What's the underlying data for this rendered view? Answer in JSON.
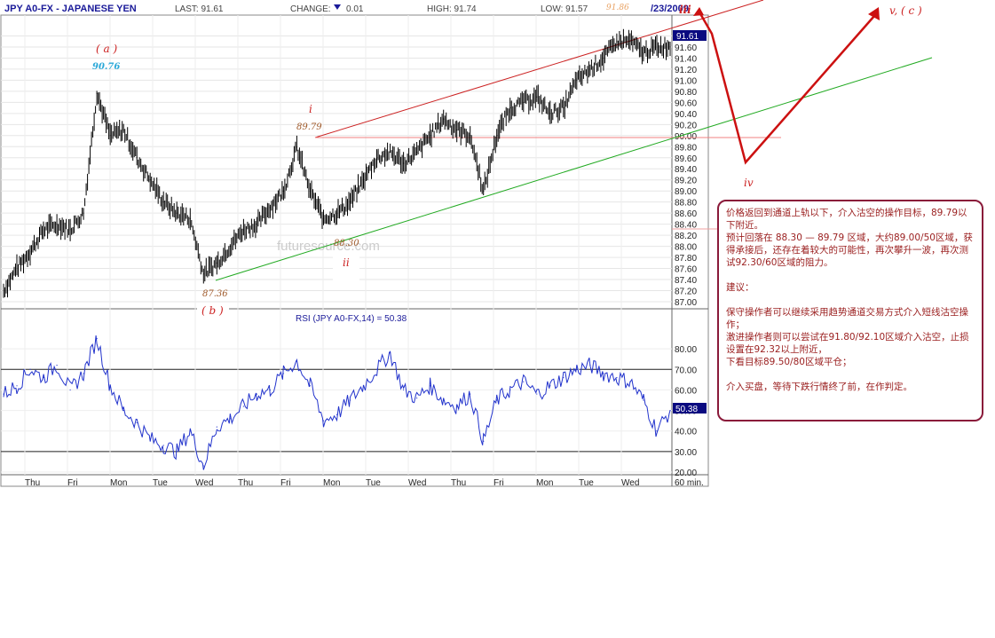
{
  "header": {
    "symbol": "JPY A0-FX - JAPANESE YEN",
    "last": "LAST: 91.61",
    "change_label": "CHANGE:",
    "change_value": "0.01",
    "high": "HIGH: 91.74",
    "low": "LOW: 91.57",
    "date_fragment": "/23/2009"
  },
  "chart_data": [
    {
      "type": "line",
      "title": "",
      "price_axis": {
        "ylim": [
          87.0,
          92.0
        ],
        "ticks": [
          "91.80",
          "91.60",
          "91.40",
          "91.20",
          "91.00",
          "90.80",
          "90.60",
          "90.40",
          "90.20",
          "90.00",
          "89.80",
          "89.60",
          "89.40",
          "89.20",
          "89.00",
          "88.80",
          "88.60",
          "88.40",
          "88.20",
          "88.00",
          "87.80",
          "87.60",
          "87.40",
          "87.20",
          "87.00"
        ],
        "last_price_tag": "91.61"
      },
      "x_axis": {
        "labels": [
          "Thu",
          "Fri",
          "Mon",
          "Tue",
          "Wed",
          "Thu",
          "Fri",
          "Mon",
          "Tue",
          "Wed",
          "Thu",
          "Fri",
          "Mon",
          "Tue",
          "Wed"
        ],
        "interval_label": "60 min."
      },
      "series": [
        {
          "x": [
            0,
            2,
            4,
            6,
            8,
            10,
            12,
            14,
            16,
            18,
            20,
            22,
            24,
            26,
            28,
            30,
            32,
            34,
            36,
            38,
            40,
            42,
            44,
            46,
            48,
            50,
            52,
            54,
            56,
            58,
            60,
            62,
            64,
            66,
            68,
            70,
            72,
            74,
            76,
            78,
            80,
            82,
            84,
            86,
            88,
            90,
            92,
            94,
            96,
            98,
            100
          ],
          "y": [
            87.2,
            87.6,
            87.9,
            88.3,
            88.4,
            88.3,
            88.6,
            90.76,
            90.0,
            90.1,
            89.6,
            89.2,
            88.8,
            88.6,
            88.5,
            87.5,
            87.7,
            88.0,
            88.3,
            88.4,
            88.7,
            89.0,
            89.79,
            89.0,
            88.5,
            88.6,
            88.8,
            89.2,
            89.6,
            89.7,
            89.5,
            89.7,
            90.0,
            90.3,
            90.1,
            90.0,
            89.0,
            90.0,
            90.5,
            90.6,
            90.7,
            90.4,
            90.5,
            91.0,
            91.2,
            91.4,
            91.7,
            91.7,
            91.5,
            91.6,
            91.61
          ]
        }
      ],
      "annotations": {
        "wave_a": "( a )",
        "wave_a_value": "90.76",
        "wave_b": "( b )",
        "wave_b_value": "87.36",
        "wave_i": "i",
        "wave_i_value": "89.79",
        "wave_ii": "ii",
        "wave_ii_value": "88.30",
        "wave_iii": "iii",
        "wave_iii_value": "91.86",
        "wave_iv": "iv",
        "wave_v": "v, ( c )"
      },
      "watermark": "futuresource.com"
    },
    {
      "type": "line",
      "title": "RSI (JPY A0-FX,14) = 50.38",
      "ylim": [
        20,
        90
      ],
      "ticks": [
        "80.00",
        "70.00",
        "60.00",
        "50.00",
        "40.00",
        "30.00",
        "20.00"
      ],
      "reference_lines": [
        70,
        30
      ],
      "last_value_tag": "50.38",
      "series": [
        {
          "x": [
            0,
            2,
            4,
            6,
            8,
            10,
            12,
            14,
            16,
            18,
            20,
            22,
            24,
            26,
            28,
            30,
            32,
            34,
            36,
            38,
            40,
            42,
            44,
            46,
            48,
            50,
            52,
            54,
            56,
            58,
            60,
            62,
            64,
            66,
            68,
            70,
            72,
            74,
            76,
            78,
            80,
            82,
            84,
            86,
            88,
            90,
            92,
            94,
            96,
            98,
            100
          ],
          "y": [
            58,
            62,
            70,
            66,
            72,
            60,
            68,
            85,
            62,
            50,
            44,
            36,
            33,
            30,
            40,
            23,
            42,
            46,
            52,
            58,
            60,
            68,
            74,
            62,
            45,
            48,
            55,
            62,
            70,
            78,
            60,
            56,
            62,
            55,
            52,
            58,
            35,
            55,
            60,
            64,
            58,
            62,
            66,
            70,
            72,
            68,
            66,
            64,
            55,
            40,
            50
          ]
        }
      ]
    }
  ],
  "note": {
    "p1": "价格返回到通道上轨以下，介入沽空的操作目标，89.79以下附近。",
    "p2": "预计回落在 88.30 — 89.79 区域，大约89.00/50区域，获得承接后，还存在着较大的可能性，再次攀升一波，再次测试92.30/60区域的阻力。",
    "p3": "建议：",
    "p4": "保守操作者可以继续采用趋势通道交易方式介入短线沽空操作；",
    "p5": "激进操作者则可以尝试在91.80/92.10区域介入沽空，止损设置在92.32以上附近，",
    "p6": "下看目标89.50/80区域平仓；",
    "p7": "介入买盘，等待下跌行情终了前，在作判定。"
  },
  "colors": {
    "channel_upper": "#cc2222",
    "channel_lower": "#22aa22",
    "wave_arrow": "#cc1111",
    "rsi_line": "#2233cc",
    "price_bars": "#000000",
    "header_blue": "#1a1a99",
    "note_border": "#8a1a3a"
  }
}
